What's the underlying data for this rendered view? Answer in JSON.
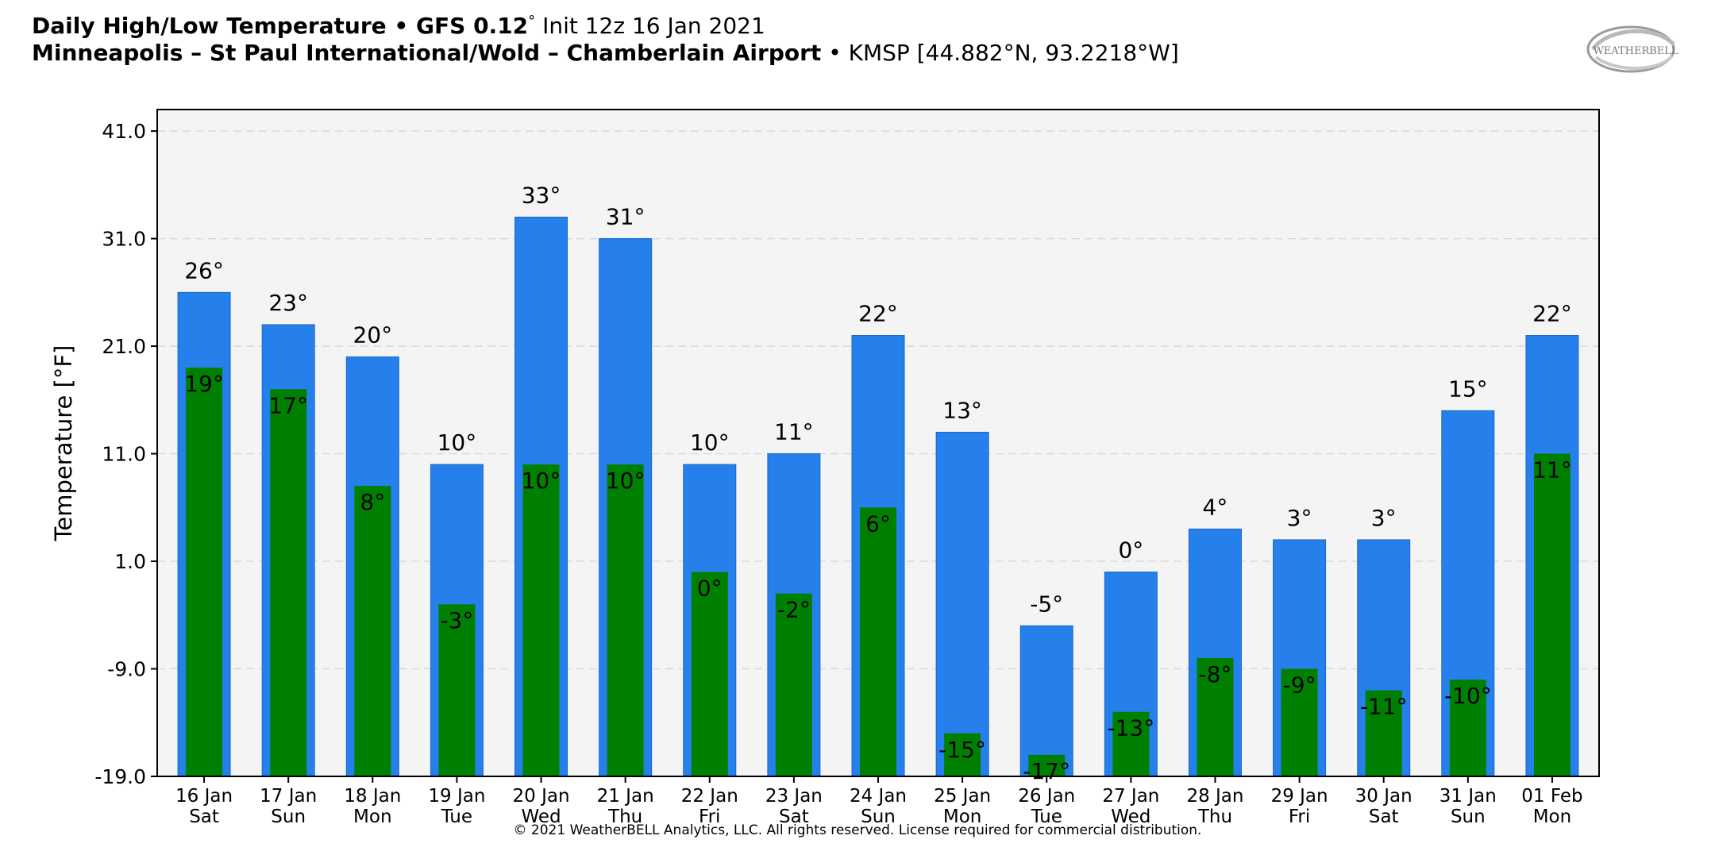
{
  "header": {
    "title_bold": "Daily High/Low Temperature • GFS 0.12",
    "title_deg": "°",
    "title_rest": " Init 12z 16 Jan 2021",
    "subtitle_bold": "Minneapolis – St Paul International/Wold – Chamberlain Airport",
    "subtitle_rest": " • KMSP [44.882°N, 93.2218°W]"
  },
  "logo": {
    "text": "WEATHERBELL",
    "icon": "weatherbell-logo-icon"
  },
  "copyright": "© 2021 WeatherBELL Analytics, LLC. All rights reserved. License required for commercial distribution.",
  "colors": {
    "high": "#2680eb",
    "low": "#008000",
    "plot_bg": "#f4f4f4",
    "grid": "#d9d9d9"
  },
  "chart_data": {
    "type": "bar",
    "ylabel": "Temperature [°F]",
    "ylim": [
      -19.0,
      43.0
    ],
    "yticks": [
      "41.0",
      "31.0",
      "21.0",
      "11.0",
      "1.0",
      "-9.0",
      "-19.0"
    ],
    "ytick_values": [
      41,
      31,
      21,
      11,
      1,
      -9,
      -19
    ],
    "grid": true,
    "categories": [
      "16 Jan",
      "17 Jan",
      "18 Jan",
      "19 Jan",
      "20 Jan",
      "21 Jan",
      "22 Jan",
      "23 Jan",
      "24 Jan",
      "25 Jan",
      "26 Jan",
      "27 Jan",
      "28 Jan",
      "29 Jan",
      "30 Jan",
      "31 Jan",
      "01 Feb"
    ],
    "weekdays": [
      "Sat",
      "Sun",
      "Mon",
      "Tue",
      "Wed",
      "Thu",
      "Fri",
      "Sat",
      "Sun",
      "Mon",
      "Tue",
      "Wed",
      "Thu",
      "Fri",
      "Sat",
      "Sun",
      "Mon"
    ],
    "series": [
      {
        "values": [
          26,
          23,
          20,
          10,
          33,
          31,
          10,
          11,
          22,
          13,
          -5,
          0,
          4,
          3,
          3,
          15,
          22
        ],
        "labels": [
          "26°",
          "23°",
          "20°",
          "10°",
          "33°",
          "31°",
          "10°",
          "11°",
          "22°",
          "13°",
          "-5°",
          "0°",
          "4°",
          "3°",
          "3°",
          "15°",
          "22°"
        ]
      },
      {
        "values": [
          19,
          17,
          8,
          -3,
          10,
          10,
          0,
          -2,
          6,
          -15,
          -17,
          -13,
          -8,
          -9,
          -11,
          -10,
          11
        ],
        "labels": [
          "19°",
          "17°",
          "8°",
          "-3°",
          "10°",
          "10°",
          "0°",
          "-2°",
          "6°",
          "-15°",
          "-17°",
          "-13°",
          "-8°",
          "-9°",
          "-11°",
          "-10°",
          "11°"
        ]
      }
    ]
  }
}
